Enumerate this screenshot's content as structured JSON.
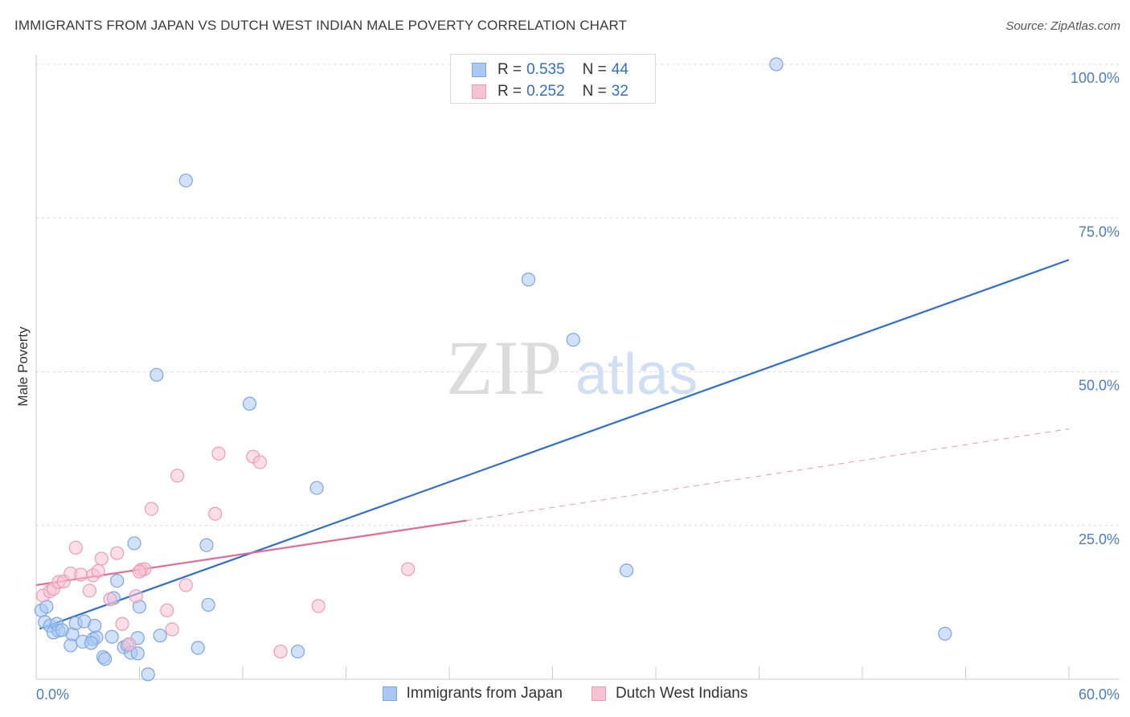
{
  "title": "IMMIGRANTS FROM JAPAN VS DUTCH WEST INDIAN MALE POVERTY CORRELATION CHART",
  "source": "Source: ZipAtlas.com",
  "watermark": {
    "zip": "ZIP",
    "atlas": "atlas"
  },
  "legend_stats": [
    {
      "series": "Immigrants from Japan",
      "r_label": "R =",
      "r_value": "0.535",
      "n_label": "N =",
      "n_value": "44",
      "color": "#a9c8f2",
      "border": "#7aa6e6"
    },
    {
      "series": "Dutch West Indians",
      "r_label": "R =",
      "r_value": "0.252",
      "n_label": "N =",
      "n_value": "32",
      "color": "#f7c3d2",
      "border": "#ee9ab3"
    }
  ],
  "chart_data": {
    "type": "scatter",
    "title": "IMMIGRANTS FROM JAPAN VS DUTCH WEST INDIAN MALE POVERTY CORRELATION CHART",
    "xlabel": "",
    "ylabel": "Male Poverty",
    "xlim": [
      0,
      60
    ],
    "ylim": [
      0,
      100
    ],
    "x_tick_labels": [
      "0.0%",
      "60.0%"
    ],
    "y_ticks": [
      25,
      50,
      75,
      100
    ],
    "y_tick_labels": [
      "25.0%",
      "50.0%",
      "75.0%",
      "100.0%"
    ],
    "grid": "horizontal dashed",
    "legend": "bottom-center",
    "series": [
      {
        "name": "Immigrants from Japan",
        "color": "#7aa6e6",
        "fill": "#a9c8f2",
        "line_color": "#2e6fd1",
        "trend": {
          "x1": 0.2,
          "y1": 8.2,
          "x2": 60,
          "y2": 68.2,
          "style": "solid"
        },
        "points": [
          [
            0.3,
            11.2
          ],
          [
            0.5,
            9.3
          ],
          [
            0.8,
            8.7
          ],
          [
            1.0,
            7.6
          ],
          [
            1.2,
            9.0
          ],
          [
            1.3,
            7.9
          ],
          [
            2.1,
            7.3
          ],
          [
            2.3,
            9.1
          ],
          [
            2.0,
            5.5
          ],
          [
            2.7,
            6.1
          ],
          [
            2.8,
            9.4
          ],
          [
            3.3,
            6.5
          ],
          [
            3.5,
            6.8
          ],
          [
            3.2,
            5.9
          ],
          [
            3.4,
            8.7
          ],
          [
            3.9,
            3.6
          ],
          [
            4.0,
            3.3
          ],
          [
            4.4,
            6.9
          ],
          [
            4.5,
            13.2
          ],
          [
            4.7,
            16.0
          ],
          [
            5.1,
            5.2
          ],
          [
            5.3,
            5.5
          ],
          [
            5.5,
            4.3
          ],
          [
            5.9,
            6.7
          ],
          [
            5.9,
            4.2
          ],
          [
            6.0,
            11.8
          ],
          [
            6.5,
            0.8
          ],
          [
            5.7,
            22.1
          ],
          [
            7.2,
            7.1
          ],
          [
            9.4,
            5.1
          ],
          [
            9.9,
            21.8
          ],
          [
            10.0,
            12.1
          ],
          [
            7.0,
            49.5
          ],
          [
            8.7,
            81.1
          ],
          [
            12.4,
            44.8
          ],
          [
            15.2,
            4.5
          ],
          [
            16.3,
            31.1
          ],
          [
            28.6,
            65.0
          ],
          [
            31.2,
            55.2
          ],
          [
            34.3,
            17.7
          ],
          [
            43.0,
            100.0
          ],
          [
            52.8,
            7.4
          ],
          [
            0.6,
            11.8
          ],
          [
            1.5,
            8.0
          ]
        ]
      },
      {
        "name": "Dutch West Indians",
        "color": "#ee9ab3",
        "fill": "#f7c3d2",
        "line_color": "#e56a96",
        "trend": {
          "x1": 0,
          "y1": 15.3,
          "x2": 25.0,
          "y2": 25.8,
          "style": "solid",
          "ext_x2": 60,
          "ext_y2": 40.7,
          "ext_style": "dashed"
        },
        "points": [
          [
            0.4,
            13.6
          ],
          [
            0.8,
            14.3
          ],
          [
            1.0,
            14.7
          ],
          [
            1.3,
            15.8
          ],
          [
            1.6,
            15.9
          ],
          [
            2.0,
            17.2
          ],
          [
            2.3,
            21.4
          ],
          [
            2.6,
            17.0
          ],
          [
            3.1,
            14.4
          ],
          [
            3.3,
            16.9
          ],
          [
            3.6,
            17.6
          ],
          [
            3.8,
            19.6
          ],
          [
            4.3,
            13.0
          ],
          [
            4.7,
            20.5
          ],
          [
            5.0,
            9.0
          ],
          [
            5.4,
            5.7
          ],
          [
            5.8,
            13.5
          ],
          [
            6.1,
            17.8
          ],
          [
            6.3,
            17.9
          ],
          [
            6.7,
            27.7
          ],
          [
            7.6,
            11.2
          ],
          [
            7.9,
            8.1
          ],
          [
            8.2,
            33.1
          ],
          [
            8.7,
            15.3
          ],
          [
            10.4,
            26.9
          ],
          [
            10.6,
            36.7
          ],
          [
            12.6,
            36.2
          ],
          [
            13.0,
            35.3
          ],
          [
            14.2,
            4.5
          ],
          [
            16.4,
            11.9
          ],
          [
            21.6,
            17.9
          ],
          [
            6.0,
            17.5
          ]
        ]
      }
    ]
  }
}
